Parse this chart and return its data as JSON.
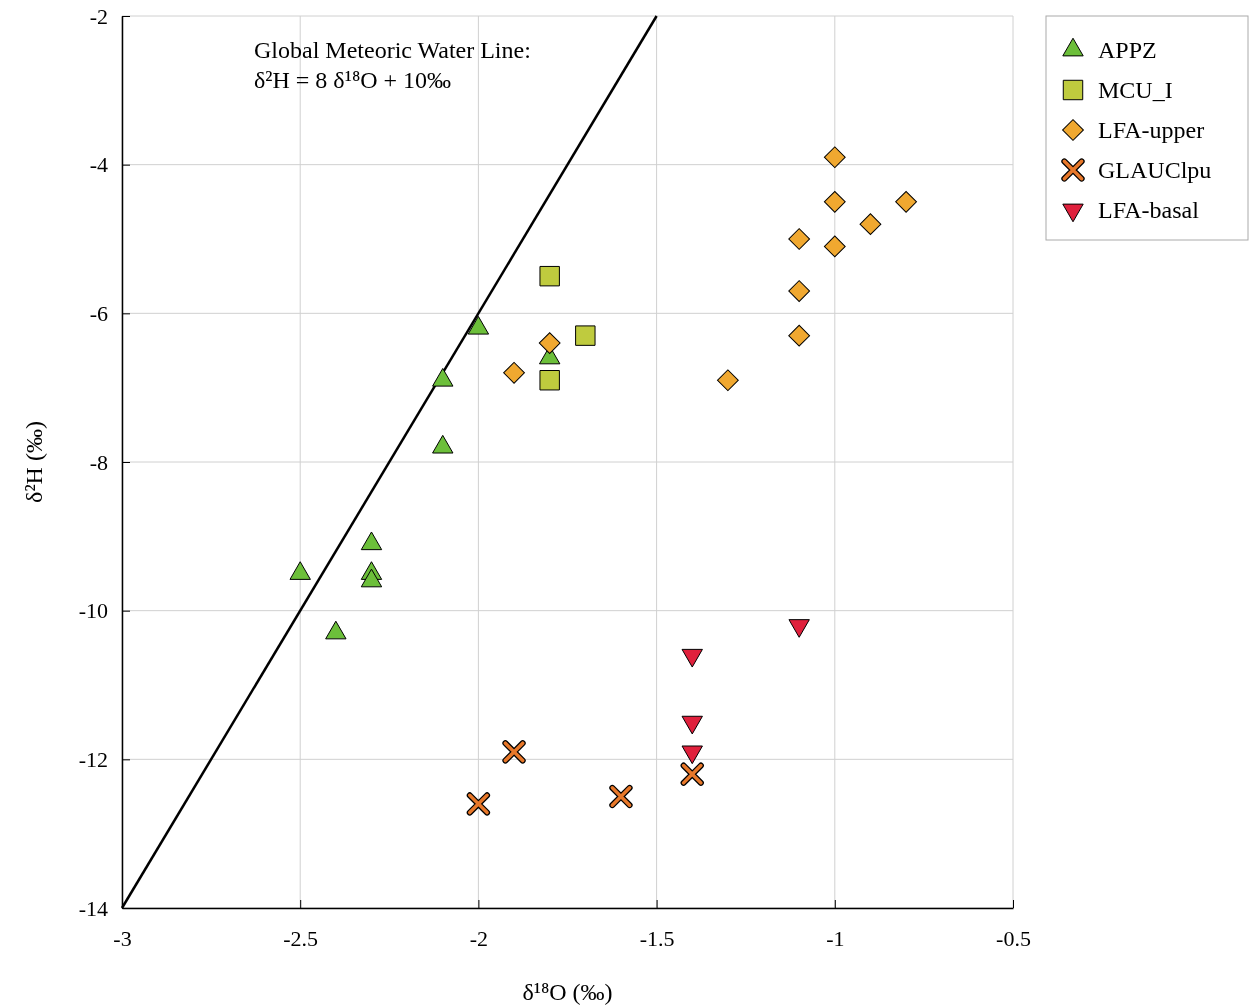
{
  "chart_data": {
    "type": "scatter",
    "xlabel": "δ¹⁸O (‰)",
    "ylabel": "δ²H (‰)",
    "xlim": [
      -3,
      -0.5
    ],
    "xticks": [
      -3,
      -2.5,
      -2,
      -1.5,
      -1,
      -0.5
    ],
    "ylim": [
      -14,
      -2
    ],
    "yticks": [
      -14,
      -12,
      -10,
      -8,
      -6,
      -4,
      -2
    ],
    "grid": true,
    "legend": "top right",
    "annotations": [
      "Global Meteoric Water Line:\nδ²H = 8 δ¹⁸O + 10‰"
    ],
    "series": [
      {
        "type": "line",
        "color": "#000000",
        "x": [
          -3,
          -1.5
        ],
        "values": [
          -14,
          -2
        ],
        "marker": "none",
        "line_style": "solid"
      },
      {
        "name": "APPZ",
        "color": "#6cbf3a",
        "marker": "triangle",
        "x": [
          -2.0,
          -2.1,
          -2.1,
          -1.8,
          -2.3,
          -2.3,
          -2.3,
          -2.5,
          -2.4
        ],
        "values": [
          -6.2,
          -6.9,
          -7.8,
          -6.6,
          -9.1,
          -9.5,
          -9.6,
          -9.5,
          -10.3
        ]
      },
      {
        "name": "MCU_I",
        "color": "#bfcb3e",
        "marker": "square",
        "x": [
          -1.8,
          -1.7,
          -1.8
        ],
        "values": [
          -5.5,
          -6.3,
          -6.9
        ]
      },
      {
        "name": "LFA-upper",
        "color": "#f0a830",
        "marker": "diamond",
        "x": [
          -1,
          -1,
          -0.8,
          -0.9,
          -1.1,
          -1,
          -1.1,
          -1.1,
          -1.3,
          -1.8,
          -1.9
        ],
        "values": [
          -3.9,
          -4.5,
          -4.5,
          -4.8,
          -5.0,
          -5.1,
          -5.7,
          -6.3,
          -6.9,
          -6.4,
          -6.8
        ]
      },
      {
        "name": "GLAUClpu",
        "color": "#e8782a",
        "marker": "cross",
        "x": [
          -1.9,
          -2,
          -1.6,
          -1.4
        ],
        "values": [
          -11.9,
          -12.6,
          -12.5,
          -12.2
        ]
      },
      {
        "name": "LFA-basal",
        "color": "#e0203c",
        "marker": "triangle-down",
        "x": [
          -1.1,
          -1.4,
          -1.4,
          -1.4
        ],
        "values": [
          -10.2,
          -10.6,
          -11.5,
          -11.9
        ]
      }
    ]
  }
}
